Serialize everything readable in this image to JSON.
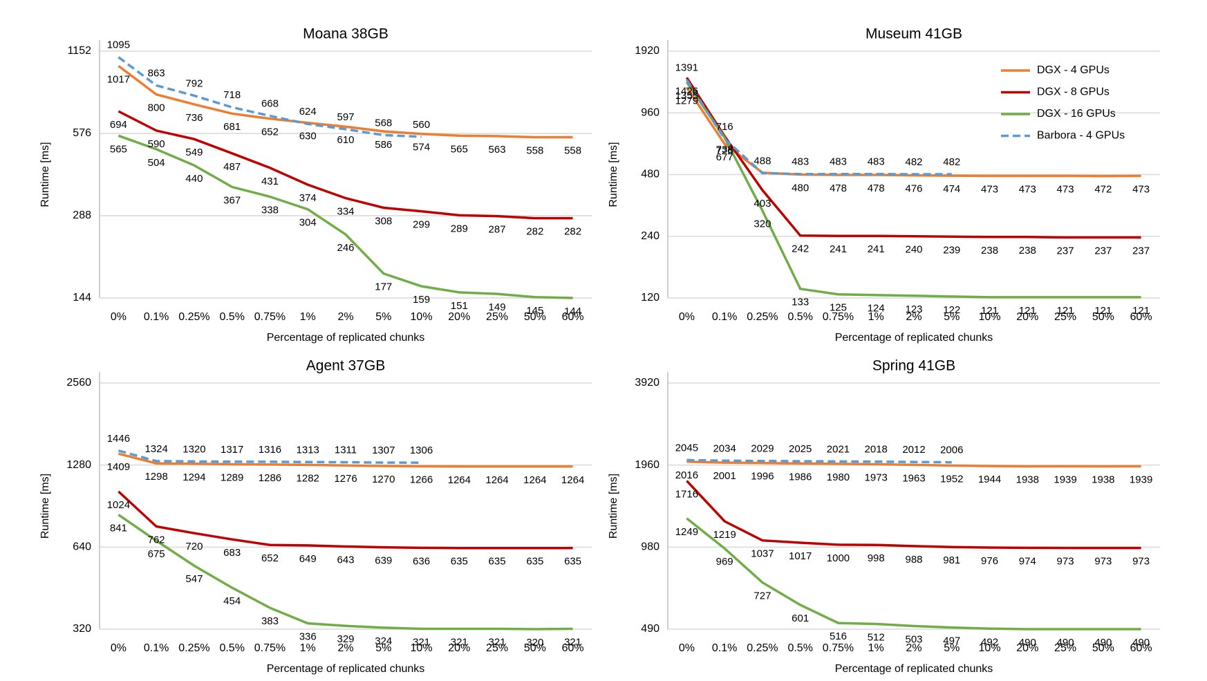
{
  "chart_data": [
    {
      "type": "line",
      "title": "Moana 38GB",
      "xlabel": "Percentage of replicated chunks",
      "ylabel": "Runtime [ms]",
      "categories": [
        "0%",
        "0.1%",
        "0.25%",
        "0.5%",
        "0.75%",
        "1%",
        "2%",
        "5%",
        "10%",
        "20%",
        "25%",
        "50%",
        "60%"
      ],
      "yscale": "log",
      "ylim": [
        144,
        1152
      ],
      "yticks": [
        144,
        288,
        576,
        1152
      ],
      "grid": true,
      "series": [
        {
          "name": "DGX - 4 GPUs",
          "color": "#ed7d31",
          "values": [
            1017,
            800,
            736,
            681,
            652,
            630,
            610,
            586,
            574,
            565,
            563,
            558,
            558
          ]
        },
        {
          "name": "DGX - 8 GPUs",
          "color": "#c00000",
          "values": [
            694,
            590,
            549,
            487,
            431,
            374,
            334,
            308,
            299,
            289,
            287,
            282,
            282
          ]
        },
        {
          "name": "DGX - 16 GPUs",
          "color": "#70ad47",
          "values": [
            565,
            504,
            440,
            367,
            338,
            304,
            246,
            177,
            159,
            151,
            149,
            145,
            144
          ]
        },
        {
          "name": "Barbora - 4 GPUs",
          "color": "#5b9bd5",
          "dashed": true,
          "values": [
            1095,
            863,
            792,
            718,
            668,
            624,
            597,
            568,
            560,
            null,
            null,
            null,
            null
          ]
        }
      ]
    },
    {
      "type": "line",
      "title": "Museum 41GB",
      "xlabel": "Percentage of replicated chunks",
      "ylabel": "Runtime [ms]",
      "categories": [
        "0%",
        "0.1%",
        "0.25%",
        "0.5%",
        "0.75%",
        "1%",
        "2%",
        "5%",
        "10%",
        "20%",
        "25%",
        "50%",
        "60%"
      ],
      "yscale": "log",
      "ylim": [
        120,
        1920
      ],
      "yticks": [
        120,
        240,
        480,
        960,
        1920
      ],
      "grid": true,
      "legend": "upper right",
      "series": [
        {
          "name": "DGX - 4 GPUs",
          "color": "#ed7d31",
          "values": [
            1279,
            677,
            490,
            480,
            478,
            478,
            476,
            474,
            473,
            473,
            473,
            472,
            473
          ],
          "value_labels": [
            "1279",
            "677",
            null,
            "480",
            "478",
            "478",
            "476",
            "474",
            "473",
            "473",
            "473",
            "472",
            "473"
          ]
        },
        {
          "name": "DGX - 8 GPUs",
          "color": "#c00000",
          "values": [
            1426,
            738,
            403,
            242,
            241,
            241,
            240,
            239,
            238,
            238,
            237,
            237,
            237
          ]
        },
        {
          "name": "DGX - 16 GPUs",
          "color": "#70ad47",
          "values": [
            1355,
            726,
            320,
            133,
            125,
            124,
            123,
            122,
            121,
            121,
            121,
            121,
            121
          ]
        },
        {
          "name": "Barbora - 4 GPUs",
          "color": "#5b9bd5",
          "dashed": true,
          "values": [
            1391,
            716,
            488,
            483,
            483,
            483,
            482,
            482,
            null,
            null,
            null,
            null,
            null
          ]
        }
      ]
    },
    {
      "type": "line",
      "title": "Agent 37GB",
      "xlabel": "Percentage of replicated chunks",
      "ylabel": "Runtime [ms]",
      "categories": [
        "0%",
        "0.1%",
        "0.25%",
        "0.5%",
        "0.75%",
        "1%",
        "2%",
        "5%",
        "10%",
        "20%",
        "25%",
        "50%",
        "60%"
      ],
      "yscale": "log",
      "ylim": [
        320,
        2560
      ],
      "yticks": [
        320,
        640,
        1280,
        2560
      ],
      "grid": true,
      "series": [
        {
          "name": "DGX - 4 GPUs",
          "color": "#ed7d31",
          "values": [
            1409,
            1298,
            1294,
            1289,
            1286,
            1282,
            1276,
            1270,
            1266,
            1264,
            1264,
            1264,
            1264
          ]
        },
        {
          "name": "DGX - 8 GPUs",
          "color": "#c00000",
          "values": [
            1024,
            762,
            720,
            683,
            652,
            649,
            643,
            639,
            636,
            635,
            635,
            635,
            635
          ]
        },
        {
          "name": "DGX - 16 GPUs",
          "color": "#70ad47",
          "values": [
            841,
            675,
            547,
            454,
            383,
            336,
            329,
            324,
            321,
            321,
            321,
            320,
            321
          ]
        },
        {
          "name": "Barbora - 4 GPUs",
          "color": "#5b9bd5",
          "dashed": true,
          "values": [
            1446,
            1324,
            1320,
            1317,
            1316,
            1313,
            1311,
            1307,
            1306,
            null,
            null,
            null,
            null
          ]
        }
      ]
    },
    {
      "type": "line",
      "title": "Spring 41GB",
      "xlabel": "Percentage of replicated chunks",
      "ylabel": "Runtime [ms]",
      "categories": [
        "0%",
        "0.1%",
        "0.25%",
        "0.5%",
        "0.75%",
        "1%",
        "2%",
        "5%",
        "10%",
        "20%",
        "25%",
        "50%",
        "60%"
      ],
      "yscale": "log",
      "ylim": [
        490,
        3920
      ],
      "yticks": [
        490,
        980,
        1960,
        3920
      ],
      "grid": true,
      "series": [
        {
          "name": "DGX - 4 GPUs",
          "color": "#ed7d31",
          "values": [
            2016,
            2001,
            1996,
            1986,
            1980,
            1973,
            1963,
            1952,
            1944,
            1938,
            1939,
            1938,
            1939
          ]
        },
        {
          "name": "DGX - 8 GPUs",
          "color": "#c00000",
          "values": [
            1716,
            1219,
            1037,
            1017,
            1000,
            998,
            988,
            981,
            976,
            974,
            973,
            973,
            973
          ]
        },
        {
          "name": "DGX - 16 GPUs",
          "color": "#70ad47",
          "values": [
            1249,
            969,
            727,
            601,
            516,
            512,
            503,
            497,
            492,
            490,
            490,
            490,
            490
          ]
        },
        {
          "name": "Barbora - 4 GPUs",
          "color": "#5b9bd5",
          "dashed": true,
          "values": [
            2045,
            2034,
            2029,
            2025,
            2021,
            2018,
            2012,
            2006,
            null,
            null,
            null,
            null,
            null
          ]
        }
      ]
    }
  ]
}
